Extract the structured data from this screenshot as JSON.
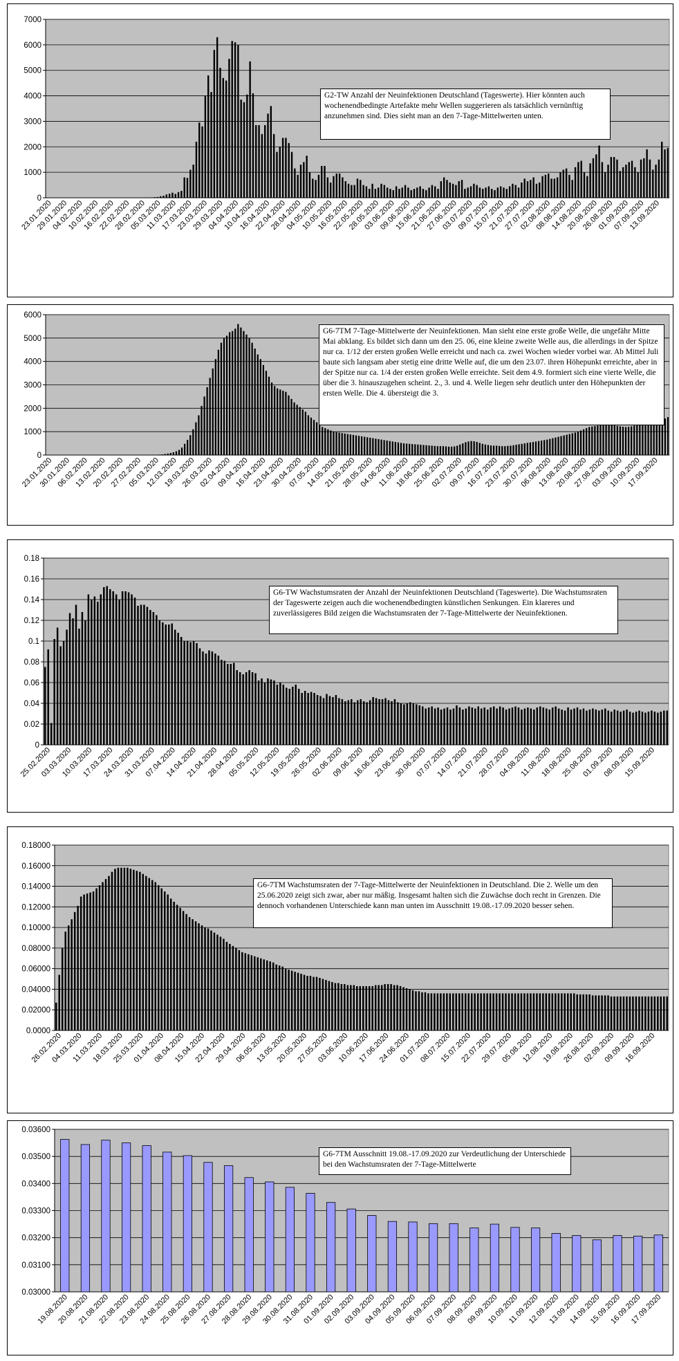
{
  "charts": [
    {
      "id": "p1",
      "annotation": "G2-TW Anzahl der Neuinfektionen Deutschland (Tageswerte). Hier könnten auch wochenendbedingte Artefakte mehr Wellen suggerieren als tatsächlich vernünftig anzunehmen sind. Dies sieht man an den 7-Tage-Mittelwerten unten.",
      "y_ticks": [
        "0",
        "1000",
        "2000",
        "3000",
        "4000",
        "5000",
        "6000",
        "7000"
      ],
      "x_ticks": [
        "23.01.2020",
        "29.01.2020",
        "04.02.2020",
        "10.02.2020",
        "16.02.2020",
        "22.02.2020",
        "28.02.2020",
        "05.03.2020",
        "11.03.2020",
        "17.03.2020",
        "23.03.2020",
        "29.03.2020",
        "04.04.2020",
        "10.04.2020",
        "16.04.2020",
        "22.04.2020",
        "28.04.2020",
        "04.05.2020",
        "10.05.2020",
        "16.05.2020",
        "22.05.2020",
        "28.05.2020",
        "03.06.2020",
        "09.06.2020",
        "15.06.2020",
        "21.06.2020",
        "27.06.2020",
        "03.07.2020",
        "09.07.2020",
        "15.07.2020",
        "21.07.2020",
        "27.07.2020",
        "02.08.2020",
        "08.08.2020",
        "14.08.2020",
        "20.08.2020",
        "26.08.2020",
        "01.09.2020",
        "07.09.2020",
        "13.09.2020"
      ]
    },
    {
      "id": "p2",
      "annotation": "G6-7TM 7-Tage-Mittelwerte der Neuinfektionen. Man sieht eine erste große Welle, die ungefähr Mitte Mai abklang. Es bildet sich dann um den 25. 06, eine kleine zweite Welle aus, die allerdings in der Spitze nur ca. 1/12 der ersten großen Welle erreicht und nach ca. zwei Wochen wieder vorbei war. Ab Mittel Juli baute sich langsam aber stetig eine dritte Welle auf, die um den 23.07. ihren Höhepunkt erreichte, aber in der Spitze nur ca. 1/4 der ersten großen Welle erreichte. Seit dem 4.9. formiert sich eine vierte Welle, die über die 3. hinauszugehen scheint. 2., 3. und 4. Welle liegen sehr deutlich unter den Höhepunkten der ersten Welle. Die 4. übersteigt die 3.",
      "y_ticks": [
        "0",
        "1000",
        "2000",
        "3000",
        "4000",
        "5000",
        "6000"
      ],
      "x_ticks": [
        "23.01.2020",
        "30.01.2020",
        "06.02.2020",
        "13.02.2020",
        "20.02.2020",
        "27.02.2020",
        "05.03.2020",
        "12.03.2020",
        "19.03.2020",
        "26.03.2020",
        "02.04.2020",
        "09.04.2020",
        "16.04.2020",
        "23.04.2020",
        "30.04.2020",
        "07.05.2020",
        "14.05.2020",
        "21.05.2020",
        "28.05.2020",
        "04.06.2020",
        "11.06.2020",
        "18.06.2020",
        "25.06.2020",
        "02.07.2020",
        "09.07.2020",
        "16.07.2020",
        "23.07.2020",
        "30.07.2020",
        "06.08.2020",
        "13.08.2020",
        "20.08.2020",
        "27.08.2020",
        "03.09.2020",
        "10.09.2020",
        "17.09.2020"
      ]
    },
    {
      "id": "p3",
      "annotation": "G6-TW Wachstumsraten der Anzahl der Neuinfektionen Deutschland (Tageswerte). Die Wachstumsraten der Tageswerte zeigen auch die wochenendbedingten künstlichen Senkungen. Ein klareres und zuverlässigeres Bild zeigen die Wachstumsraten der 7-Tage-Mittelwerte der Neuinfektionen.",
      "y_ticks": [
        "0",
        "0.02",
        "0.04",
        "0.06",
        "0.08",
        "0.1",
        "0.12",
        "0.14",
        "0.16",
        "0.18"
      ],
      "x_ticks": [
        "25.02.2020",
        "03.03.2020",
        "10.03.2020",
        "17.03.2020",
        "24.03.2020",
        "31.03.2020",
        "07.04.2020",
        "14.04.2020",
        "21.04.2020",
        "28.04.2020",
        "05.05.2020",
        "12.05.2020",
        "19.05.2020",
        "26.05.2020",
        "02.06.2020",
        "09.06.2020",
        "16.06.2020",
        "23.06.2020",
        "30.06.2020",
        "07.07.2020",
        "14.07.2020",
        "21.07.2020",
        "28.07.2020",
        "04.08.2020",
        "11.08.2020",
        "18.08.2020",
        "25.08.2020",
        "01.09.2020",
        "08.09.2020",
        "15.09.2020"
      ]
    },
    {
      "id": "p4",
      "annotation": "G6-7TM Wachstumsraten der 7-Tage-Mittelwerte der Neuinfektionen in Deutschland. Die 2. Welle um den 25.06.2020 zeigt sich zwar, aber nur mäßig. Insgesamt halten sich die Zuwächse doch recht in Grenzen. Die dennoch vorhandenen Unterschiede kann man unten im Ausschnitt 19.08.-17.09.2020 besser sehen.",
      "y_ticks": [
        "0.0000",
        "0.02000",
        "0.04000",
        "0.06000",
        "0.08000",
        "0.10000",
        "0.12000",
        "0.14000",
        "0.16000",
        "0.18000"
      ],
      "x_ticks": [
        "26.02.2020",
        "04.03.2020",
        "11.03.2020",
        "18.03.2020",
        "25.03.2020",
        "01.04.2020",
        "08.04.2020",
        "15.04.2020",
        "22.04.2020",
        "29.04.2020",
        "06.05.2020",
        "13.05.2020",
        "20.05.2020",
        "27.05.2020",
        "03.06.2020",
        "10.06.2020",
        "17.06.2020",
        "24.06.2020",
        "01.07.2020",
        "08.07.2020",
        "15.07.2020",
        "22.07.2020",
        "29.07.2020",
        "05.08.2020",
        "12.08.2020",
        "19.08.2020",
        "26.08.2020",
        "02.09.2020",
        "09.09.2020",
        "16.09.2020"
      ]
    },
    {
      "id": "p5",
      "annotation": "G6-7TM Ausschnitt 19.08.-17.09.2020 zur Verdeutlichung der Unterschiede bei den Wachstumsraten der 7-Tage-Mittelwerte",
      "y_ticks": [
        "0.03000",
        "0.03100",
        "0.03200",
        "0.03300",
        "0.03400",
        "0.03500",
        "0.03600"
      ],
      "x_ticks": [
        "19.08.2020",
        "20.08.2020",
        "21.08.2020",
        "22.08.2020",
        "23.08.2020",
        "24.08.2020",
        "25.08.2020",
        "26.08.2020",
        "27.08.2020",
        "28.08.2020",
        "29.08.2020",
        "30.08.2020",
        "31.08.2020",
        "01.09.2020",
        "02.09.2020",
        "03.09.2020",
        "04.09.2020",
        "05.09.2020",
        "06.09.2020",
        "07.09.2020",
        "08.09.2020",
        "09.09.2020",
        "10.09.2020",
        "11.09.2020",
        "12.09.2020",
        "13.09.2020",
        "14.09.2020",
        "15.09.2020",
        "16.09.2020",
        "17.09.2020"
      ]
    }
  ],
  "chart_data": [
    {
      "type": "bar",
      "ylim": [
        0,
        7000
      ],
      "grid": true,
      "bar_color": "#000000",
      "plot_bg": "#c0c0c0",
      "values": [
        0,
        0,
        0,
        0,
        1,
        0,
        0,
        0,
        0,
        0,
        1,
        0,
        0,
        1,
        0,
        0,
        0,
        2,
        1,
        0,
        0,
        0,
        0,
        0,
        0,
        0,
        0,
        0,
        0,
        0,
        0,
        0,
        0,
        0,
        5,
        15,
        25,
        30,
        60,
        80,
        130,
        160,
        200,
        150,
        220,
        270,
        800,
        780,
        1100,
        1300,
        2200,
        2950,
        2800,
        4000,
        4800,
        4150,
        5800,
        6300,
        5100,
        4700,
        4600,
        5450,
        6150,
        6100,
        6000,
        3850,
        3750,
        4050,
        5350,
        4100,
        2850,
        2850,
        2500,
        2850,
        3300,
        3600,
        2500,
        1800,
        2000,
        2350,
        2350,
        2150,
        1800,
        1150,
        900,
        1300,
        1400,
        1650,
        1000,
        750,
        700,
        900,
        1250,
        1250,
        800,
        600,
        850,
        950,
        950,
        800,
        650,
        550,
        500,
        500,
        750,
        700,
        500,
        450,
        350,
        550,
        350,
        400,
        550,
        500,
        400,
        350,
        300,
        450,
        350,
        400,
        500,
        400,
        300,
        350,
        400,
        450,
        350,
        300,
        400,
        500,
        450,
        350,
        650,
        800,
        700,
        600,
        550,
        500,
        650,
        700,
        350,
        400,
        450,
        550,
        500,
        400,
        350,
        400,
        450,
        350,
        300,
        400,
        450,
        400,
        350,
        450,
        550,
        500,
        400,
        600,
        750,
        650,
        700,
        800,
        550,
        600,
        850,
        900,
        950,
        750,
        750,
        800,
        1000,
        1100,
        1150,
        900,
        700,
        1200,
        1400,
        1450,
        1000,
        850,
        1350,
        1550,
        1700,
        2050,
        1400,
        1000,
        1300,
        1600,
        1600,
        1500,
        1050,
        1200,
        1300,
        1400,
        1450,
        1200,
        1000,
        1500,
        1550,
        1900,
        1500,
        1100,
        1300,
        1500,
        2200,
        1900,
        1950
      ]
    },
    {
      "type": "bar",
      "ylim": [
        0,
        6000
      ],
      "grid": true,
      "bar_color": "#000000",
      "plot_bg": "#c0c0c0",
      "values": [
        0,
        0,
        0,
        0,
        0,
        0,
        0,
        0,
        0,
        0,
        1,
        1,
        1,
        1,
        1,
        1,
        1,
        1,
        1,
        1,
        1,
        1,
        1,
        1,
        1,
        1,
        1,
        1,
        1,
        1,
        1,
        1,
        1,
        1,
        1,
        2,
        3,
        5,
        8,
        12,
        20,
        30,
        45,
        65,
        90,
        120,
        160,
        220,
        320,
        480,
        650,
        850,
        1100,
        1400,
        1700,
        2100,
        2500,
        2900,
        3300,
        3700,
        4100,
        4500,
        4800,
        5000,
        5100,
        5250,
        5300,
        5400,
        5600,
        5450,
        5300,
        5150,
        5000,
        4800,
        4550,
        4300,
        4100,
        3850,
        3600,
        3350,
        3100,
        2950,
        2850,
        2800,
        2750,
        2700,
        2550,
        2400,
        2250,
        2150,
        2050,
        1950,
        1850,
        1700,
        1600,
        1500,
        1400,
        1300,
        1200,
        1150,
        1100,
        1050,
        1000,
        980,
        960,
        940,
        920,
        900,
        880,
        860,
        840,
        820,
        800,
        780,
        760,
        740,
        720,
        700,
        680,
        660,
        640,
        620,
        600,
        580,
        560,
        540,
        520,
        500,
        490,
        480,
        470,
        460,
        450,
        440,
        430,
        420,
        410,
        400,
        390,
        380,
        380,
        380,
        370,
        360,
        360,
        370,
        400,
        450,
        500,
        550,
        580,
        600,
        590,
        560,
        520,
        480,
        450,
        430,
        410,
        400,
        400,
        390,
        380,
        380,
        390,
        400,
        420,
        440,
        460,
        480,
        500,
        520,
        540,
        560,
        580,
        600,
        620,
        640,
        660,
        690,
        720,
        750,
        780,
        810,
        840,
        870,
        900,
        930,
        960,
        1000,
        1050,
        1100,
        1150,
        1200,
        1220,
        1240,
        1260,
        1280,
        1300,
        1310,
        1320,
        1300,
        1280,
        1250,
        1230,
        1210,
        1200,
        1210,
        1230,
        1260,
        1280,
        1300,
        1320,
        1340,
        1360,
        1380,
        1400,
        1430,
        1460,
        1500,
        1560,
        1620
      ]
    },
    {
      "type": "bar",
      "ylim": [
        0,
        0.18
      ],
      "grid": true,
      "bar_color": "#000000",
      "plot_bg": "#c0c0c0",
      "values": [
        0.075,
        0.092,
        0.021,
        0.102,
        0.113,
        0.095,
        0.1,
        0.111,
        0.127,
        0.122,
        0.135,
        0.112,
        0.128,
        0.12,
        0.145,
        0.14,
        0.143,
        0.138,
        0.145,
        0.152,
        0.153,
        0.15,
        0.148,
        0.145,
        0.14,
        0.148,
        0.148,
        0.147,
        0.145,
        0.142,
        0.134,
        0.135,
        0.135,
        0.133,
        0.13,
        0.128,
        0.125,
        0.12,
        0.118,
        0.116,
        0.116,
        0.117,
        0.111,
        0.108,
        0.104,
        0.1,
        0.1,
        0.099,
        0.1,
        0.098,
        0.093,
        0.09,
        0.088,
        0.091,
        0.09,
        0.088,
        0.086,
        0.082,
        0.081,
        0.078,
        0.078,
        0.079,
        0.072,
        0.07,
        0.068,
        0.07,
        0.072,
        0.07,
        0.069,
        0.062,
        0.064,
        0.06,
        0.064,
        0.063,
        0.062,
        0.058,
        0.06,
        0.058,
        0.055,
        0.054,
        0.056,
        0.058,
        0.054,
        0.05,
        0.052,
        0.05,
        0.051,
        0.05,
        0.048,
        0.047,
        0.045,
        0.049,
        0.047,
        0.046,
        0.048,
        0.045,
        0.044,
        0.042,
        0.043,
        0.044,
        0.041,
        0.043,
        0.044,
        0.042,
        0.041,
        0.043,
        0.046,
        0.045,
        0.044,
        0.044,
        0.045,
        0.043,
        0.042,
        0.044,
        0.041,
        0.04,
        0.039,
        0.04,
        0.041,
        0.04,
        0.039,
        0.038,
        0.037,
        0.035,
        0.036,
        0.037,
        0.035,
        0.036,
        0.034,
        0.035,
        0.036,
        0.034,
        0.035,
        0.038,
        0.036,
        0.034,
        0.035,
        0.037,
        0.036,
        0.035,
        0.037,
        0.035,
        0.036,
        0.034,
        0.036,
        0.037,
        0.035,
        0.037,
        0.036,
        0.034,
        0.035,
        0.036,
        0.037,
        0.036,
        0.034,
        0.035,
        0.036,
        0.035,
        0.034,
        0.036,
        0.037,
        0.036,
        0.035,
        0.034,
        0.036,
        0.037,
        0.035,
        0.034,
        0.033,
        0.036,
        0.034,
        0.035,
        0.036,
        0.034,
        0.035,
        0.033,
        0.034,
        0.035,
        0.034,
        0.033,
        0.034,
        0.035,
        0.033,
        0.032,
        0.034,
        0.033,
        0.032,
        0.033,
        0.034,
        0.032,
        0.031,
        0.032,
        0.033,
        0.032,
        0.031,
        0.032,
        0.033,
        0.032,
        0.031,
        0.032,
        0.033,
        0.033
      ]
    },
    {
      "type": "bar",
      "ylim": [
        0,
        0.18
      ],
      "grid": true,
      "bar_color": "#000000",
      "plot_bg": "#c0c0c0",
      "values": [
        0.027,
        0.054,
        0.08,
        0.096,
        0.102,
        0.108,
        0.115,
        0.121,
        0.13,
        0.132,
        0.133,
        0.134,
        0.135,
        0.138,
        0.141,
        0.144,
        0.147,
        0.15,
        0.154,
        0.157,
        0.158,
        0.158,
        0.158,
        0.158,
        0.157,
        0.156,
        0.155,
        0.154,
        0.152,
        0.15,
        0.148,
        0.146,
        0.144,
        0.141,
        0.138,
        0.135,
        0.132,
        0.128,
        0.125,
        0.122,
        0.119,
        0.116,
        0.113,
        0.11,
        0.108,
        0.106,
        0.104,
        0.102,
        0.1,
        0.099,
        0.097,
        0.095,
        0.093,
        0.091,
        0.089,
        0.086,
        0.084,
        0.082,
        0.08,
        0.078,
        0.076,
        0.075,
        0.074,
        0.073,
        0.072,
        0.071,
        0.07,
        0.069,
        0.068,
        0.067,
        0.066,
        0.064,
        0.063,
        0.062,
        0.06,
        0.059,
        0.058,
        0.057,
        0.056,
        0.055,
        0.054,
        0.053,
        0.053,
        0.052,
        0.052,
        0.051,
        0.05,
        0.049,
        0.048,
        0.047,
        0.046,
        0.046,
        0.045,
        0.045,
        0.044,
        0.044,
        0.044,
        0.043,
        0.043,
        0.043,
        0.043,
        0.043,
        0.043,
        0.044,
        0.044,
        0.044,
        0.045,
        0.045,
        0.045,
        0.044,
        0.044,
        0.043,
        0.042,
        0.041,
        0.04,
        0.039,
        0.038,
        0.038,
        0.037,
        0.037,
        0.036,
        0.036,
        0.036,
        0.036,
        0.036,
        0.036,
        0.036,
        0.036,
        0.036,
        0.036,
        0.036,
        0.036,
        0.036,
        0.036,
        0.036,
        0.036,
        0.036,
        0.036,
        0.036,
        0.036,
        0.036,
        0.036,
        0.036,
        0.036,
        0.036,
        0.036,
        0.036,
        0.036,
        0.036,
        0.036,
        0.036,
        0.036,
        0.036,
        0.036,
        0.036,
        0.036,
        0.036,
        0.036,
        0.036,
        0.036,
        0.036,
        0.036,
        0.036,
        0.036,
        0.036,
        0.036,
        0.036,
        0.036,
        0.035,
        0.035,
        0.035,
        0.035,
        0.035,
        0.034,
        0.034,
        0.034,
        0.034,
        0.034,
        0.034,
        0.033,
        0.033,
        0.033,
        0.033,
        0.033,
        0.033,
        0.033,
        0.033,
        0.033,
        0.033,
        0.033,
        0.033,
        0.033,
        0.033,
        0.033,
        0.033,
        0.033,
        0.033,
        0.033
      ]
    },
    {
      "type": "bar",
      "ylim": [
        0.03,
        0.036
      ],
      "grid": true,
      "bar_color": "#9999ff",
      "plot_bg": "#c0c0c0",
      "values": [
        0.03563,
        0.03544,
        0.0356,
        0.0355,
        0.0354,
        0.03516,
        0.03503,
        0.03478,
        0.03466,
        0.03422,
        0.03406,
        0.03386,
        0.03364,
        0.0333,
        0.03306,
        0.03282,
        0.0326,
        0.03258,
        0.03252,
        0.03252,
        0.03236,
        0.0325,
        0.03238,
        0.03236,
        0.03216,
        0.03208,
        0.03192,
        0.03208,
        0.03206,
        0.0321
      ]
    }
  ]
}
